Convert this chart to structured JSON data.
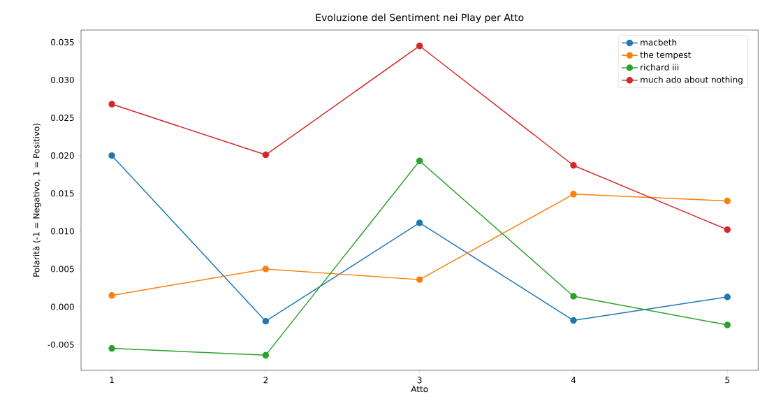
{
  "chart_data": {
    "type": "line",
    "title": "Evoluzione del Sentiment nei Play per Atto",
    "xlabel": "Atto",
    "ylabel": "Polarità (-1 = Negativo, 1 = Positivo)",
    "x": [
      1,
      2,
      3,
      4,
      5
    ],
    "series": [
      {
        "name": "macbeth",
        "color": "#1f77b4",
        "values": [
          0.02,
          -0.0019,
          0.0111,
          -0.0018,
          0.0013
        ]
      },
      {
        "name": "the tempest",
        "color": "#ff7f0e",
        "values": [
          0.0015,
          0.005,
          0.0036,
          0.0149,
          0.014
        ]
      },
      {
        "name": "richard iii",
        "color": "#2ca02c",
        "values": [
          -0.0055,
          -0.0064,
          0.0193,
          0.0014,
          -0.0024
        ]
      },
      {
        "name": "much ado about nothing",
        "color": "#d62728",
        "values": [
          0.0268,
          0.0201,
          0.0345,
          0.0187,
          0.0102
        ]
      }
    ],
    "xlim": [
      0.8,
      5.2
    ],
    "ylim": [
      -0.0084,
      0.0366
    ],
    "xticks": [
      1,
      2,
      3,
      4,
      5
    ],
    "yticks": [
      {
        "value": -0.005,
        "label": "-0.005"
      },
      {
        "value": 0,
        "label": "0.000"
      },
      {
        "value": 0.005,
        "label": "0.005"
      },
      {
        "value": 0.01,
        "label": "0.010"
      },
      {
        "value": 0.015,
        "label": "0.015"
      },
      {
        "value": 0.02,
        "label": "0.020"
      },
      {
        "value": 0.025,
        "label": "0.025"
      },
      {
        "value": 0.03,
        "label": "0.030"
      },
      {
        "value": 0.035,
        "label": "0.035"
      }
    ],
    "grid": false,
    "legend": "top right",
    "marker": "circle",
    "line_style": "solid"
  }
}
